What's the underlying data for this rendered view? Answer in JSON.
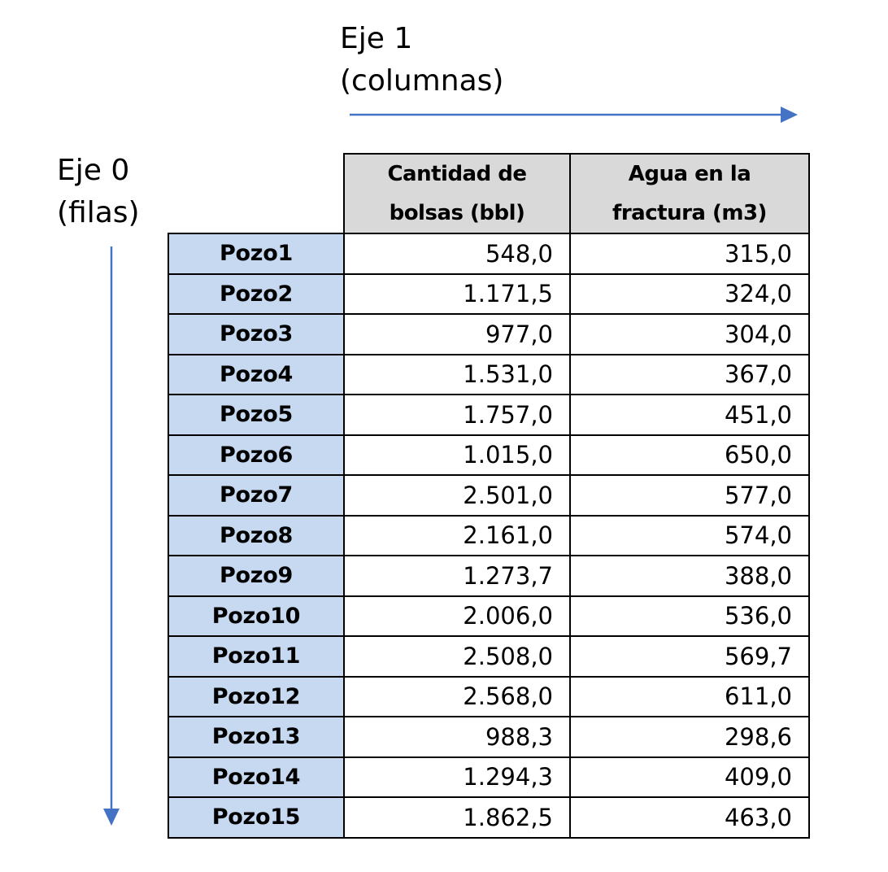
{
  "axes": {
    "axis1": {
      "line1": "Eje 1",
      "line2": "(columnas)"
    },
    "axis0": {
      "line1": "Eje 0",
      "line2": "(filas)"
    },
    "arrow_color": "#4472c4"
  },
  "table": {
    "headers": [
      {
        "line1": "Cantidad de",
        "line2": "bolsas (bbl)"
      },
      {
        "line1": "Agua en la",
        "line2": "fractura (m3)"
      }
    ],
    "header_bg": "#d9d9d9",
    "rowhead_bg": "#c6d9f1",
    "rows": [
      {
        "label": "Pozo1",
        "bolsas": "548,0",
        "agua": "315,0"
      },
      {
        "label": "Pozo2",
        "bolsas": "1.171,5",
        "agua": "324,0"
      },
      {
        "label": "Pozo3",
        "bolsas": "977,0",
        "agua": "304,0"
      },
      {
        "label": "Pozo4",
        "bolsas": "1.531,0",
        "agua": "367,0"
      },
      {
        "label": "Pozo5",
        "bolsas": "1.757,0",
        "agua": "451,0"
      },
      {
        "label": "Pozo6",
        "bolsas": "1.015,0",
        "agua": "650,0"
      },
      {
        "label": "Pozo7",
        "bolsas": "2.501,0",
        "agua": "577,0"
      },
      {
        "label": "Pozo8",
        "bolsas": "2.161,0",
        "agua": "574,0"
      },
      {
        "label": "Pozo9",
        "bolsas": "1.273,7",
        "agua": "388,0"
      },
      {
        "label": "Pozo10",
        "bolsas": "2.006,0",
        "agua": "536,0"
      },
      {
        "label": "Pozo11",
        "bolsas": "2.508,0",
        "agua": "569,7"
      },
      {
        "label": "Pozo12",
        "bolsas": "2.568,0",
        "agua": "611,0"
      },
      {
        "label": "Pozo13",
        "bolsas": "988,3",
        "agua": "298,6"
      },
      {
        "label": "Pozo14",
        "bolsas": "1.294,3",
        "agua": "409,0"
      },
      {
        "label": "Pozo15",
        "bolsas": "1.862,5",
        "agua": "463,0"
      }
    ]
  }
}
